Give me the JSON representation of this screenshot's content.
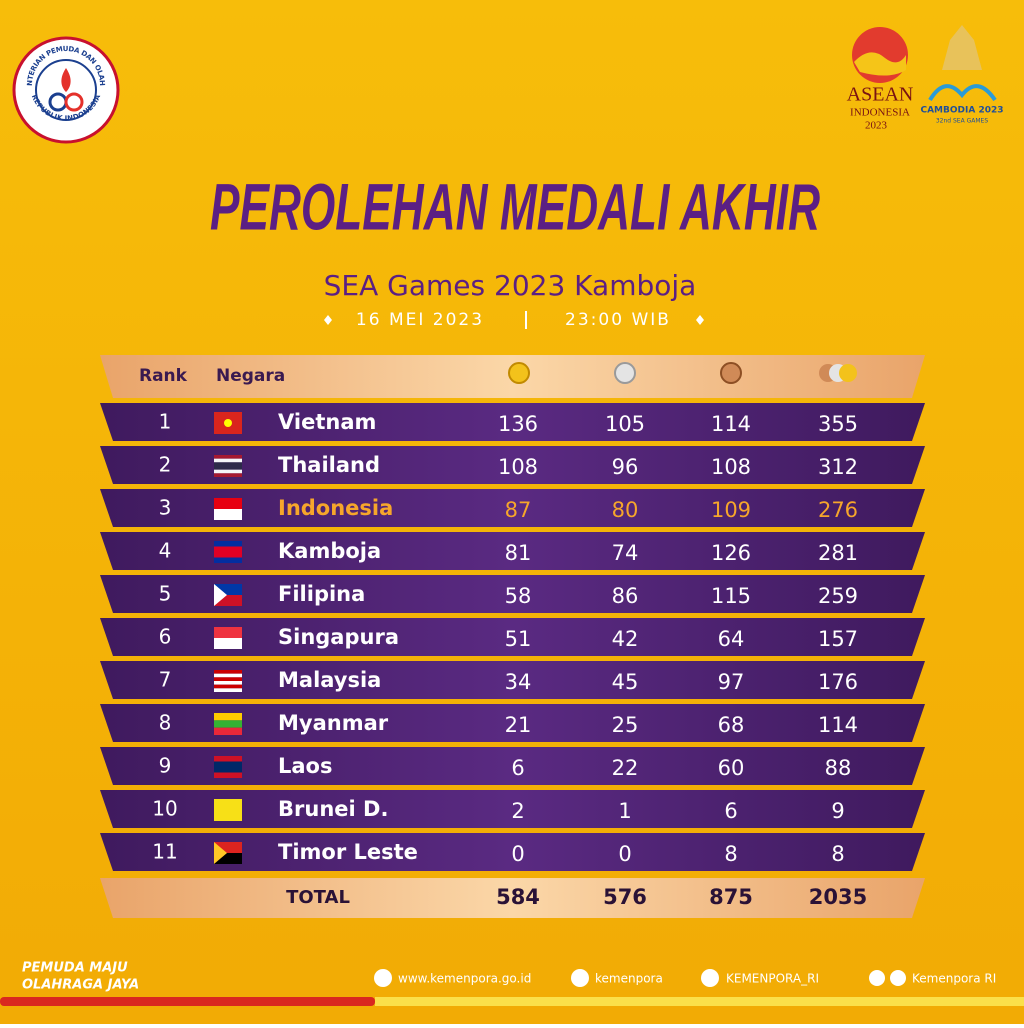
{
  "header": {
    "left_logo": {
      "top_text": "KEMENTERIAN PEMUDA DAN OLAHRAGA",
      "bottom_text": "REPUBLIK INDONESIA"
    },
    "right_logos": {
      "asean": "ASEAN",
      "asean_country": "INDONESIA",
      "asean_year": "2023",
      "cambodia": "CAMBODIA 2023",
      "sea_games": "32nd SEA GAMES"
    },
    "title": "PEROLEHAN MEDALI AKHIR",
    "subtitle": "SEA Games 2023 Kamboja",
    "date": "16 MEI 2023",
    "time": "23:00 WIB"
  },
  "table": {
    "columns": [
      "Rank",
      "Negara"
    ],
    "rows": [
      [
        1,
        "Vietnam",
        136,
        105,
        114,
        355
      ],
      [
        2,
        "Thailand",
        108,
        96,
        108,
        312
      ],
      [
        3,
        "Indonesia",
        87,
        80,
        109,
        276
      ],
      [
        4,
        "Kamboja",
        81,
        74,
        126,
        281
      ],
      [
        5,
        "Filipina",
        58,
        86,
        115,
        259
      ],
      [
        6,
        "Singapura",
        51,
        42,
        64,
        157
      ],
      [
        7,
        "Malaysia",
        34,
        45,
        97,
        176
      ],
      [
        8,
        "Myanmar",
        21,
        25,
        68,
        114
      ],
      [
        9,
        "Laos",
        6,
        22,
        60,
        88
      ],
      [
        10,
        "Brunei D.",
        2,
        1,
        6,
        9
      ],
      [
        11,
        "Timor Leste",
        0,
        0,
        8,
        8
      ]
    ],
    "total": [
      "TOTAL",
      584,
      576,
      875,
      2035
    ]
  },
  "footer": {
    "slogan_1": "PEMUDA MAJU",
    "slogan_2": "OLAHRAGA JAYA",
    "website": "www.kemenpora.go.id",
    "instagram": "kemenpora",
    "twitter": "KEMENPORA_RI",
    "facebook": "Kemenpora RI"
  }
}
